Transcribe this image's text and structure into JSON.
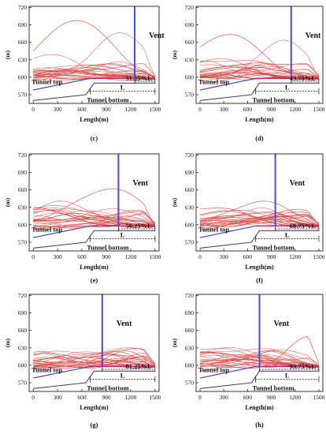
{
  "chart_data": [
    {
      "panel": "(c)",
      "type": "line",
      "vent_label": "Vent",
      "vent_x": 1250,
      "ratio_label": "31.25%L",
      "tunnel_top_label": "Tunnel top",
      "tunnel_bottom_label": "Tunnel bottom",
      "length_label": "L",
      "xlabel": "Length(m)",
      "ylabel": "(m)",
      "xticks": [
        0,
        300,
        600,
        900,
        1200,
        1500
      ],
      "yticks": [
        570,
        600,
        630,
        660,
        690,
        720
      ],
      "xlim": [
        -50,
        1550
      ],
      "ylim": [
        555,
        722
      ],
      "peaks": [
        [
          550,
          695
        ],
        [
          1100,
          675
        ],
        [
          200,
          640
        ]
      ]
    },
    {
      "panel": "(d)",
      "type": "line",
      "vent_label": "Vent",
      "vent_x": 1150,
      "ratio_label": "43.75%L",
      "tunnel_top_label": "Tunnel top",
      "tunnel_bottom_label": "Tunnel bottom",
      "length_label": "L",
      "xlabel": "Length(m)",
      "ylabel": "(m)",
      "xticks": [
        0,
        300,
        600,
        900,
        1200,
        1500
      ],
      "yticks": [
        570,
        600,
        630,
        660,
        690,
        720
      ],
      "xlim": [
        -50,
        1550
      ],
      "ylim": [
        555,
        722
      ],
      "peaks": [
        [
          350,
          677
        ],
        [
          1050,
          667
        ],
        [
          200,
          630
        ]
      ]
    },
    {
      "panel": "(e)",
      "type": "line",
      "vent_label": "Vent",
      "vent_x": 1050,
      "ratio_label": "56.25%L",
      "tunnel_top_label": "Tunnel top",
      "tunnel_bottom_label": "Tunnel bottom",
      "length_label": "L",
      "xlabel": "Length(m)",
      "ylabel": "(m)",
      "xticks": [
        0,
        300,
        600,
        900,
        1200,
        1500
      ],
      "yticks": [
        570,
        600,
        630,
        660,
        690,
        720
      ],
      "xlim": [
        -50,
        1550
      ],
      "ylim": [
        555,
        722
      ],
      "peaks": [
        [
          950,
          662
        ],
        [
          350,
          645
        ],
        [
          700,
          625
        ]
      ]
    },
    {
      "panel": "(f)",
      "type": "line",
      "vent_label": "Vent",
      "vent_x": 950,
      "ratio_label": "68.75%L",
      "tunnel_top_label": "Tunnel top",
      "tunnel_bottom_label": "Tunnel bottom",
      "length_label": "L",
      "xlabel": "Length(m)",
      "ylabel": "(m)",
      "xticks": [
        0,
        300,
        600,
        900,
        1200,
        1500
      ],
      "yticks": [
        570,
        600,
        630,
        660,
        690,
        720
      ],
      "xlim": [
        -50,
        1550
      ],
      "ylim": [
        555,
        722
      ],
      "peaks": [
        [
          750,
          643
        ],
        [
          450,
          625
        ],
        [
          1150,
          620
        ]
      ]
    },
    {
      "panel": "(g)",
      "type": "line",
      "vent_label": "Vent",
      "vent_x": 850,
      "ratio_label": "81.25%L",
      "tunnel_top_label": "Tunnel top",
      "tunnel_bottom_label": "Tunnel bottom",
      "length_label": "L",
      "xlabel": "Length(m)",
      "ylabel": "(m)",
      "xticks": [
        0,
        300,
        600,
        900,
        1200,
        1500
      ],
      "yticks": [
        570,
        600,
        630,
        660,
        690,
        720
      ],
      "xlim": [
        -50,
        1550
      ],
      "ylim": [
        555,
        722
      ],
      "peaks": [
        [
          1200,
          630
        ],
        [
          700,
          620
        ],
        [
          300,
          615
        ]
      ]
    },
    {
      "panel": "(h)",
      "type": "line",
      "vent_label": "Vent",
      "vent_x": 750,
      "ratio_label": "93.75%L",
      "tunnel_top_label": "Tunnel top",
      "tunnel_bottom_label": "Tunnel bottom",
      "length_label": "L",
      "xlabel": "Length(m)",
      "ylabel": "(m)",
      "xticks": [
        0,
        300,
        600,
        900,
        1200,
        1500
      ],
      "yticks": [
        570,
        600,
        630,
        660,
        690,
        720
      ],
      "xlim": [
        -50,
        1550
      ],
      "ylim": [
        555,
        722
      ],
      "peaks": [
        [
          1400,
          652
        ],
        [
          1100,
          625
        ],
        [
          500,
          615
        ]
      ]
    }
  ]
}
